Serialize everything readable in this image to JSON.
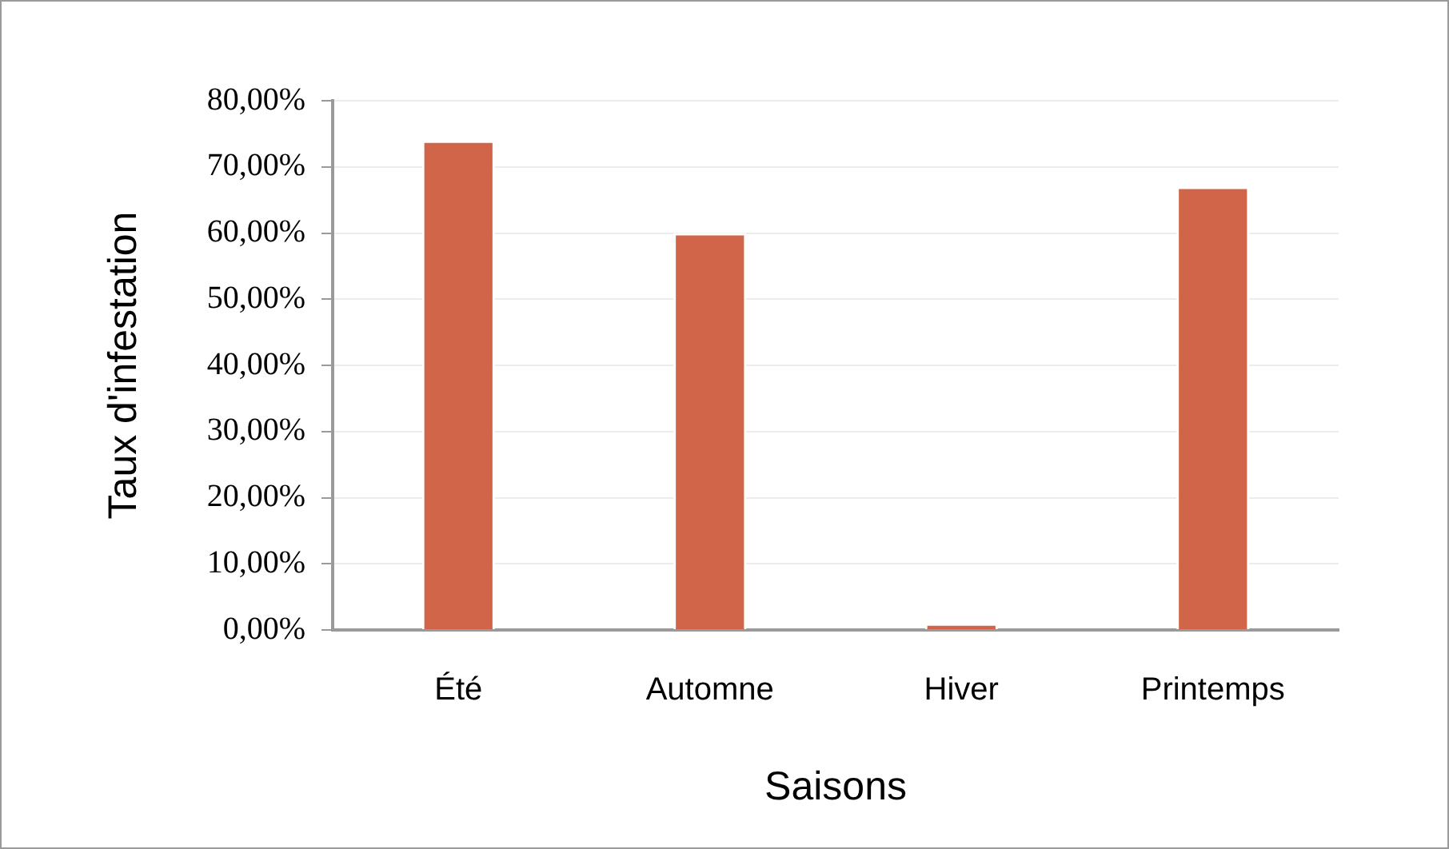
{
  "chart_data": {
    "type": "bar",
    "xlabel": "Saisons",
    "ylabel": "Taux d'infestation",
    "categories": [
      "Été",
      "Automne",
      "Hiver",
      "Printemps"
    ],
    "values": [
      74,
      60,
      1,
      67
    ],
    "color": "#d16549",
    "ylim": [
      0,
      80
    ],
    "yticks": [
      {
        "value": 0,
        "label": "0,00%"
      },
      {
        "value": 10,
        "label": "10,00%"
      },
      {
        "value": 20,
        "label": "20,00%"
      },
      {
        "value": 30,
        "label": "30,00%"
      },
      {
        "value": 40,
        "label": "40,00%"
      },
      {
        "value": 50,
        "label": "50,00%"
      },
      {
        "value": 60,
        "label": "60,00%"
      },
      {
        "value": 70,
        "label": "70,00%"
      },
      {
        "value": 80,
        "label": "80,00%"
      }
    ],
    "grid": "y"
  }
}
